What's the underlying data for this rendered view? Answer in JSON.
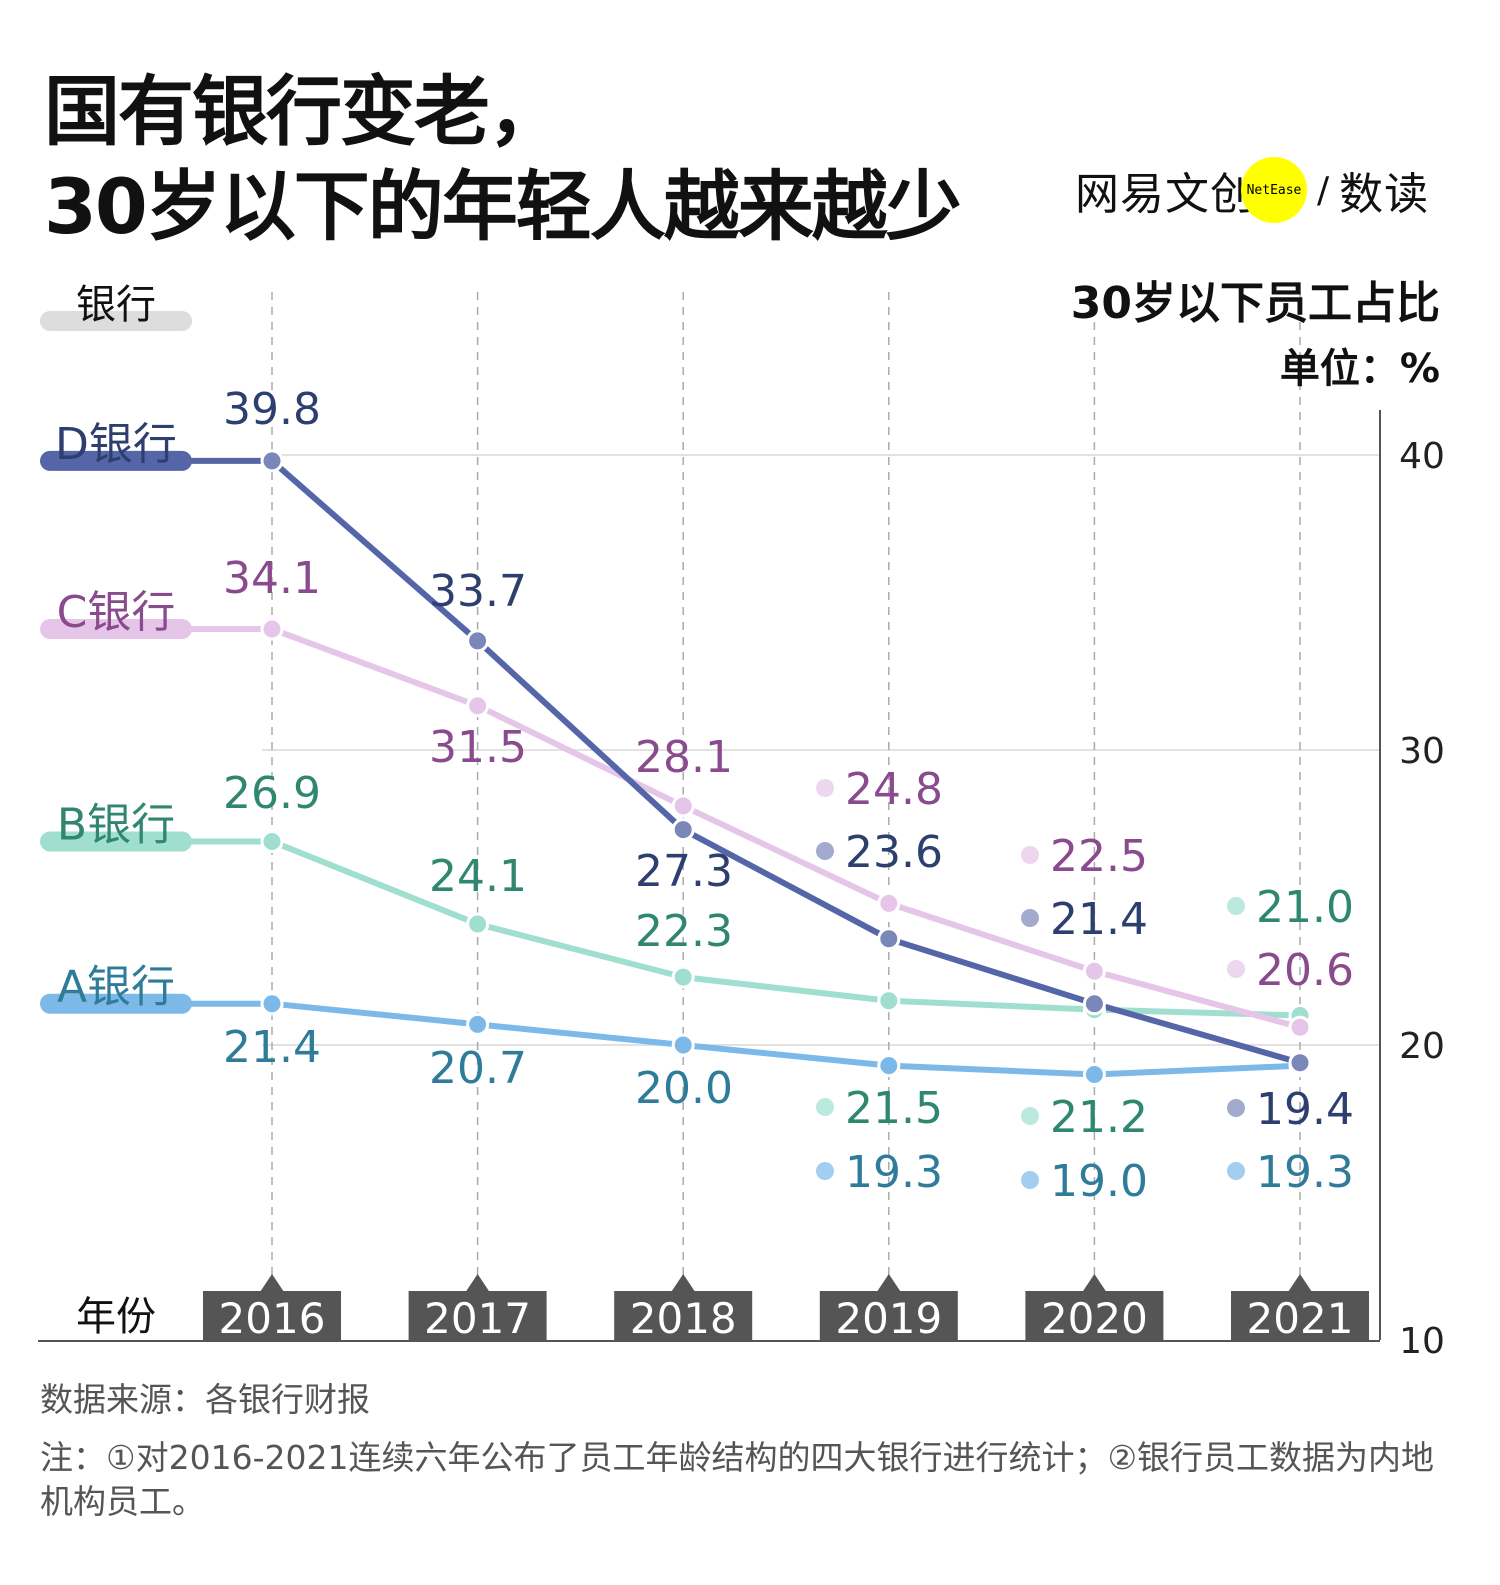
{
  "title_line1": "国有银行变老，",
  "title_line2": "30岁以下的年轻人越来越少",
  "logo": {
    "brand": "网易文创",
    "badge": "NetEase",
    "separator": "/",
    "section": "数读"
  },
  "source": "数据来源：各银行财报",
  "note": "注：①对2016-2021连续六年公布了员工年龄结构的四大银行进行统计；②银行员工数据为内地机构员工。",
  "chart_data": {
    "type": "line",
    "title": "30岁以下员工占比",
    "unit": "单位：%",
    "legend_header": "银行",
    "xlabel": "年份",
    "categories": [
      "2016",
      "2017",
      "2018",
      "2019",
      "2020",
      "2021"
    ],
    "ylim": [
      10,
      40
    ],
    "yticks": [
      10,
      20,
      30,
      40
    ],
    "grid": true,
    "series": [
      {
        "name": "D银行",
        "values": [
          39.8,
          33.7,
          27.3,
          23.6,
          21.4,
          19.4
        ],
        "color": "#5566a8",
        "label_color": "#2d3f6e",
        "dot_color": "#7a87b8"
      },
      {
        "name": "C银行",
        "values": [
          34.1,
          31.5,
          28.1,
          24.8,
          22.5,
          20.6
        ],
        "color": "#e6c6e8",
        "label_color": "#8a4a8e",
        "dot_color": "#e6c6e8"
      },
      {
        "name": "B银行",
        "values": [
          26.9,
          24.1,
          22.3,
          21.5,
          21.2,
          21.0
        ],
        "color": "#a0dfcf",
        "label_color": "#2f8770",
        "dot_color": "#a0dfcf"
      },
      {
        "name": "A银行",
        "values": [
          21.4,
          20.7,
          20.0,
          19.3,
          19.0,
          19.3
        ],
        "color": "#7db9e8",
        "label_color": "#2f7c9a",
        "dot_color": "#7db9e8"
      }
    ]
  }
}
